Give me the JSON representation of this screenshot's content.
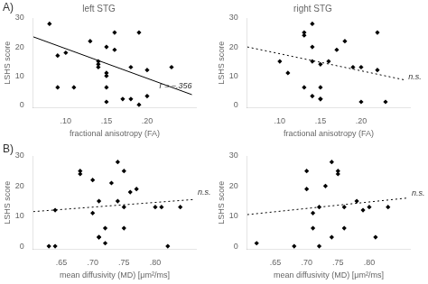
{
  "chart_data": [
    {
      "type": "scatter",
      "title": "left STG",
      "x_label": "fractional anisotropy (FA)",
      "y_label": "LSHS score",
      "series": [
        {
          "type": "scatter",
          "marker": "diamond",
          "color": "black",
          "x": [
            0.08,
            0.09,
            0.09,
            0.1,
            0.11,
            0.13,
            0.14,
            0.14,
            0.14,
            0.15,
            0.15,
            0.15,
            0.15,
            0.15,
            0.16,
            0.16,
            0.17,
            0.18,
            0.18,
            0.19,
            0.19,
            0.2,
            0.2,
            0.23
          ],
          "values": [
            28,
            17,
            6,
            18,
            6,
            22,
            15,
            14,
            13,
            20,
            11,
            10,
            6,
            1,
            25,
            19,
            2,
            13,
            2,
            25,
            0,
            12,
            3,
            13
          ]
        },
        {
          "type": "line",
          "line_style": "solid",
          "color": "black",
          "x": [
            0.06,
            0.255
          ],
          "values": [
            23.5,
            3.5
          ]
        }
      ],
      "xlim": [
        0.06,
        0.26
      ],
      "xticks": [
        {
          "value": 0.1,
          "label": ".10"
        },
        {
          "value": 0.15,
          "label": ".15"
        },
        {
          "value": 0.2,
          "label": ".20"
        }
      ],
      "ylim": [
        -1,
        30
      ],
      "yticks": [
        0,
        10,
        20,
        30
      ],
      "grid": false,
      "annotations": [
        {
          "text": "A)"
        },
        {
          "text": "r = −.356",
          "x": 0.215,
          "y": 6.5
        }
      ]
    },
    {
      "type": "scatter",
      "title": "right STG",
      "x_label": "fractional anisotropy (FA)",
      "y_label": "LSHS score",
      "series": [
        {
          "type": "scatter",
          "marker": "diamond",
          "color": "black",
          "x": [
            0.1,
            0.11,
            0.13,
            0.13,
            0.13,
            0.14,
            0.14,
            0.14,
            0.14,
            0.15,
            0.15,
            0.15,
            0.15,
            0.16,
            0.17,
            0.18,
            0.19,
            0.2,
            0.2,
            0.22,
            0.22,
            0.23
          ],
          "values": [
            15,
            11,
            24,
            25,
            6,
            28,
            20,
            15,
            3,
            14,
            6,
            2,
            2,
            15,
            19,
            22,
            13,
            13,
            1,
            25,
            12,
            1
          ]
        },
        {
          "type": "line",
          "line_style": "dotted",
          "color": "black",
          "x": [
            0.06,
            0.255
          ],
          "values": [
            20.0,
            8.5
          ]
        }
      ],
      "xlim": [
        0.06,
        0.26
      ],
      "xticks": [
        {
          "value": 0.1,
          "label": ".10"
        },
        {
          "value": 0.15,
          "label": ".15"
        },
        {
          "value": 0.2,
          "label": ".20"
        }
      ],
      "ylim": [
        -1,
        30
      ],
      "yticks": [
        0,
        10,
        20,
        30
      ],
      "grid": false,
      "annotations": [
        {
          "text": "n.s.",
          "x": 0.258,
          "y": 9.5
        }
      ]
    },
    {
      "type": "scatter",
      "x_label": "mean diffusivity (MD) [μm²/ms]",
      "y_label": "LSHS score",
      "series": [
        {
          "type": "scatter",
          "marker": "diamond",
          "color": "black",
          "x": [
            0.63,
            0.64,
            0.64,
            0.68,
            0.68,
            0.7,
            0.7,
            0.71,
            0.71,
            0.71,
            0.72,
            0.72,
            0.73,
            0.74,
            0.74,
            0.75,
            0.75,
            0.75,
            0.76,
            0.77,
            0.8,
            0.81,
            0.82,
            0.84
          ],
          "values": [
            0,
            0,
            12,
            25,
            24,
            22,
            11,
            15,
            3,
            3,
            6,
            1,
            21,
            15,
            28,
            25,
            13,
            6,
            18,
            19,
            13,
            13,
            0,
            13
          ]
        },
        {
          "type": "line",
          "line_style": "dotted",
          "color": "black",
          "x": [
            0.605,
            0.86
          ],
          "values": [
            11.5,
            15.5
          ]
        }
      ],
      "xlim": [
        0.605,
        0.865
      ],
      "xticks": [
        {
          "value": 0.65,
          "label": ".65"
        },
        {
          "value": 0.7,
          "label": ".70"
        },
        {
          "value": 0.75,
          "label": ".75"
        },
        {
          "value": 0.8,
          "label": ".80"
        }
      ],
      "ylim": [
        -1,
        30
      ],
      "yticks": [
        0,
        10,
        20,
        30
      ],
      "grid": false,
      "annotations": [
        {
          "text": "B)"
        },
        {
          "text": "n.s.",
          "x": 0.868,
          "y": 18
        }
      ]
    },
    {
      "type": "scatter",
      "x_label": "mean diffusivity (MD) [μm²/ms]",
      "y_label": "LSHS score",
      "series": [
        {
          "type": "scatter",
          "marker": "diamond",
          "color": "black",
          "x": [
            0.62,
            0.68,
            0.7,
            0.7,
            0.71,
            0.71,
            0.72,
            0.72,
            0.73,
            0.74,
            0.74,
            0.75,
            0.75,
            0.76,
            0.76,
            0.78,
            0.79,
            0.8,
            0.81,
            0.83
          ],
          "values": [
            1,
            0,
            25,
            19,
            11,
            6,
            13,
            0,
            20,
            28,
            3,
            25,
            24,
            6,
            13,
            15,
            12,
            13,
            3,
            13
          ]
        },
        {
          "type": "line",
          "line_style": "dotted",
          "color": "black",
          "x": [
            0.605,
            0.86
          ],
          "values": [
            10.5,
            16.0
          ]
        }
      ],
      "xlim": [
        0.605,
        0.865
      ],
      "xticks": [
        {
          "value": 0.65,
          "label": ".65"
        },
        {
          "value": 0.7,
          "label": ".70"
        },
        {
          "value": 0.75,
          "label": ".75"
        },
        {
          "value": 0.8,
          "label": ".80"
        }
      ],
      "ylim": [
        -1,
        30
      ],
      "yticks": [
        0,
        10,
        20,
        30
      ],
      "grid": false,
      "annotations": [
        {
          "text": "n.s.",
          "x": 0.868,
          "y": 17.5
        }
      ]
    }
  ]
}
